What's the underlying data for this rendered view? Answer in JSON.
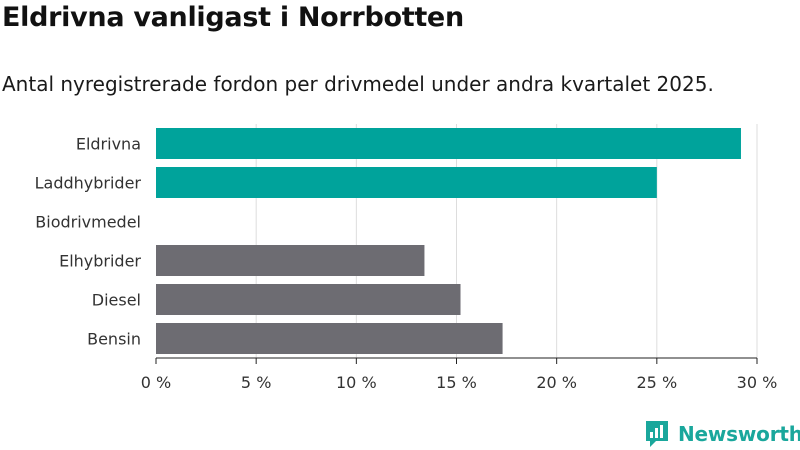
{
  "title": "Eldrivna vanligast i Norrbotten",
  "subtitle": "Antal nyregistrerade fordon per drivmedel under andra kvartalet 2025.",
  "brand": {
    "name": "Newsworthy",
    "color": "#1aa79c"
  },
  "colors": {
    "highlight": "#00a39b",
    "other": "#6d6c72",
    "grid": "#dddddd",
    "axis": "#222222",
    "text": "#333333"
  },
  "chart_data": {
    "type": "bar",
    "orientation": "horizontal",
    "categories": [
      "Eldrivna",
      "Laddhybrider",
      "Biodrivmedel",
      "Elhybrider",
      "Diesel",
      "Bensin"
    ],
    "values": [
      29.2,
      25.0,
      0,
      13.4,
      15.2,
      17.3
    ],
    "highlight": [
      true,
      true,
      false,
      false,
      false,
      false
    ],
    "xlim": [
      0,
      30
    ],
    "xticks": [
      0,
      5,
      10,
      15,
      20,
      25,
      30
    ],
    "tick_labels": [
      "0 %",
      "5 %",
      "10 %",
      "15 %",
      "20 %",
      "25 %",
      "30 %"
    ],
    "grid": true,
    "legend": "none"
  }
}
